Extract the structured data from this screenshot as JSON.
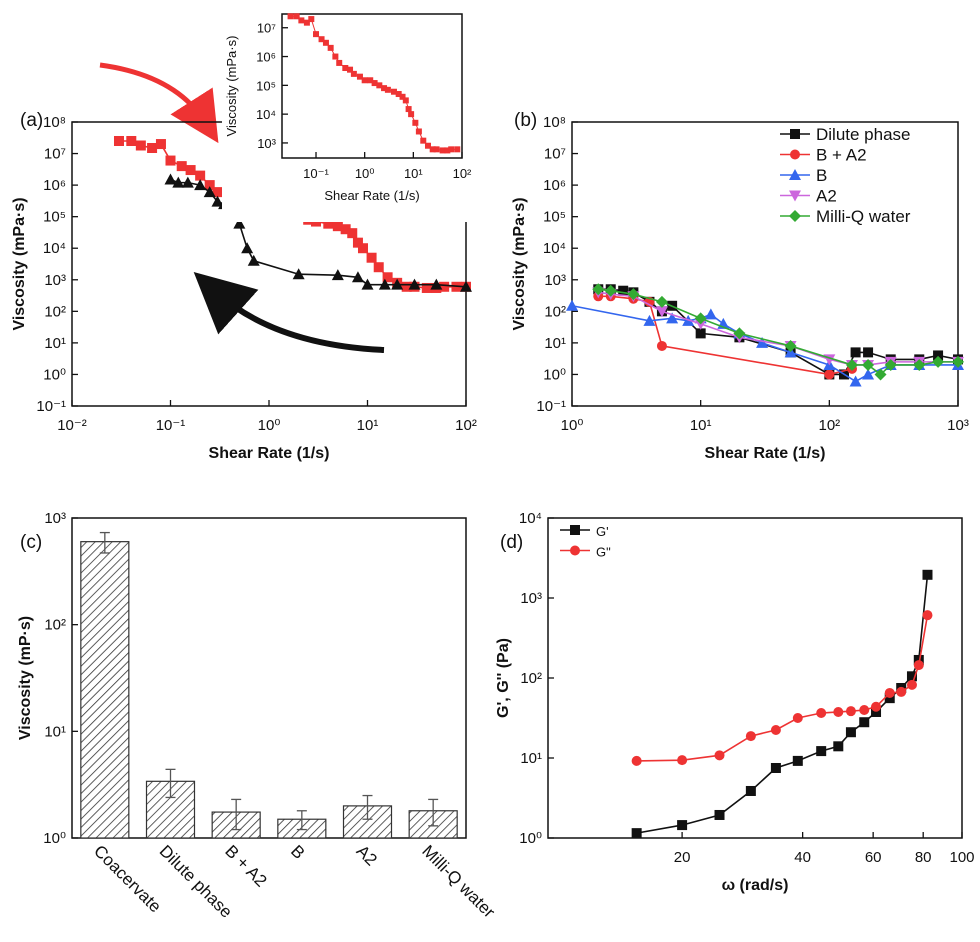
{
  "chart_data": [
    {
      "type": "line",
      "panel_label": "(a)",
      "x_label": "Shear Rate (1/s)",
      "y_label": "Viscosity (mPa·s)",
      "xscale": "log",
      "yscale": "log",
      "xlim": [
        0.01,
        100
      ],
      "ylim": [
        0.1,
        100000000
      ],
      "xticks": [
        {
          "value": 0.01,
          "label": "10⁻²"
        },
        {
          "value": 0.1,
          "label": "10⁻¹"
        },
        {
          "value": 1,
          "label": "10⁰"
        },
        {
          "value": 10,
          "label": "10¹"
        },
        {
          "value": 100,
          "label": "10²"
        }
      ],
      "yticks": [
        {
          "value": 0.1,
          "label": "10⁻¹"
        },
        {
          "value": 1,
          "label": "10⁰"
        },
        {
          "value": 10,
          "label": "10¹"
        },
        {
          "value": 100,
          "label": "10²"
        },
        {
          "value": 1000,
          "label": "10³"
        },
        {
          "value": 10000,
          "label": "10⁴"
        },
        {
          "value": 100000,
          "label": "10⁵"
        },
        {
          "value": 1000000,
          "label": "10⁶"
        },
        {
          "value": 10000000,
          "label": "10⁷"
        },
        {
          "value": 100000000,
          "label": "10⁸"
        }
      ],
      "series": [
        {
          "color": "#ee3333",
          "marker": "square",
          "x": [
            0.03,
            0.04,
            0.05,
            0.065,
            0.08,
            0.1,
            0.13,
            0.16,
            0.2,
            0.25,
            0.3,
            0.4,
            0.5,
            0.6,
            0.8,
            1,
            1.3,
            1.6,
            2,
            2.5,
            3,
            4,
            5,
            6,
            7,
            8,
            9,
            11,
            13,
            16,
            20,
            25,
            30,
            40,
            50,
            60,
            80,
            100
          ],
          "values": [
            25000000,
            25000000,
            18000000,
            15000000,
            20000000,
            6000000,
            4000000,
            3000000,
            2000000,
            1000000,
            600000,
            400000,
            350000,
            250000,
            200000,
            150000,
            150000,
            120000,
            100000,
            80000,
            70000,
            60000,
            50000,
            40000,
            30000,
            15000,
            10000,
            5000,
            2500,
            1200,
            800,
            600,
            600,
            550,
            550,
            600,
            600,
            600
          ]
        },
        {
          "color": "#111111",
          "marker": "triangle",
          "x": [
            0.1,
            0.12,
            0.15,
            0.2,
            0.25,
            0.3,
            0.35,
            0.45,
            0.5,
            0.6,
            0.7,
            2,
            5,
            8,
            10,
            15,
            20,
            30,
            50,
            100
          ],
          "values": [
            1500000,
            1200000,
            1200000,
            1000000,
            600000,
            300000,
            250000,
            200000,
            60000,
            10000,
            4000,
            1500,
            1400,
            1200,
            700,
            700,
            700,
            700,
            700,
            600
          ]
        }
      ]
    },
    {
      "type": "line",
      "x_label": "Shear Rate (1/s)",
      "y_label": "Viscosity (mPa·s)",
      "xscale": "log",
      "yscale": "log",
      "xlim": [
        0.02,
        100
      ],
      "ylim": [
        300,
        30000000
      ],
      "xticks": [
        {
          "value": 0.1,
          "label": "10⁻¹"
        },
        {
          "value": 1,
          "label": "10⁰"
        },
        {
          "value": 10,
          "label": "10¹"
        },
        {
          "value": 100,
          "label": "10²"
        }
      ],
      "yticks": [
        {
          "value": 1000,
          "label": "10³"
        },
        {
          "value": 10000,
          "label": "10⁴"
        },
        {
          "value": 100000,
          "label": "10⁵"
        },
        {
          "value": 1000000,
          "label": "10⁶"
        },
        {
          "value": 10000000,
          "label": "10⁷"
        }
      ],
      "series": [
        {
          "color": "#ee3333",
          "marker": "square-small",
          "x": [
            0.03,
            0.04,
            0.05,
            0.065,
            0.08,
            0.1,
            0.13,
            0.16,
            0.2,
            0.25,
            0.3,
            0.4,
            0.5,
            0.6,
            0.8,
            1,
            1.3,
            1.6,
            2,
            2.5,
            3,
            4,
            5,
            6,
            7,
            8,
            9,
            11,
            13,
            16,
            20,
            25,
            30,
            40,
            50,
            60,
            80
          ],
          "values": [
            25000000,
            25000000,
            18000000,
            15000000,
            20000000,
            6000000,
            4000000,
            3000000,
            2000000,
            1000000,
            600000,
            400000,
            350000,
            250000,
            200000,
            150000,
            150000,
            120000,
            100000,
            80000,
            70000,
            60000,
            50000,
            40000,
            30000,
            15000,
            10000,
            5000,
            2500,
            1200,
            800,
            600,
            600,
            550,
            550,
            600,
            600
          ]
        }
      ]
    },
    {
      "type": "line",
      "panel_label": "(b)",
      "x_label": "Shear Rate (1/s)",
      "y_label": "Viscosity (mPa·s)",
      "xscale": "log",
      "yscale": "log",
      "xlim": [
        1,
        1000
      ],
      "ylim": [
        0.1,
        100000000
      ],
      "legend": "upper right",
      "xticks": [
        {
          "value": 1,
          "label": "10⁰"
        },
        {
          "value": 10,
          "label": "10¹"
        },
        {
          "value": 100,
          "label": "10²"
        },
        {
          "value": 1000,
          "label": "10³"
        }
      ],
      "yticks": [
        {
          "value": 0.1,
          "label": "10⁻¹"
        },
        {
          "value": 1,
          "label": "10⁰"
        },
        {
          "value": 10,
          "label": "10¹"
        },
        {
          "value": 100,
          "label": "10²"
        },
        {
          "value": 1000,
          "label": "10³"
        },
        {
          "value": 10000,
          "label": "10⁴"
        },
        {
          "value": 100000,
          "label": "10⁵"
        },
        {
          "value": 1000000,
          "label": "10⁶"
        },
        {
          "value": 10000000,
          "label": "10⁷"
        },
        {
          "value": 100000000,
          "label": "10⁸"
        }
      ],
      "series": [
        {
          "name": "Dilute phase",
          "color": "#111111",
          "marker": "square",
          "x": [
            1.6,
            2,
            2.5,
            3,
            4,
            5,
            6,
            10,
            20,
            50,
            100,
            130,
            160,
            200,
            300,
            500,
            700,
            1000
          ],
          "values": [
            500,
            500,
            450,
            400,
            200,
            100,
            150,
            20,
            15,
            5,
            1,
            1,
            5,
            5,
            3,
            3,
            4,
            3
          ]
        },
        {
          "name": "B + A2",
          "color": "#ee3333",
          "marker": "circle",
          "x": [
            1.6,
            2,
            3,
            4,
            5,
            100,
            150
          ],
          "values": [
            300,
            300,
            250,
            200,
            8,
            1,
            1.5
          ]
        },
        {
          "name": "B",
          "color": "#3366ee",
          "marker": "triangle",
          "x": [
            1,
            4,
            6,
            8,
            10,
            12,
            15,
            20,
            30,
            50,
            100,
            160,
            200,
            300,
            500,
            1000
          ],
          "values": [
            150,
            50,
            60,
            50,
            60,
            80,
            40,
            20,
            10,
            5,
            2,
            0.6,
            1,
            2,
            2,
            2
          ]
        },
        {
          "name": "A2",
          "color": "#cc66dd",
          "marker": "triangle-down",
          "x": [
            1.6,
            2,
            3,
            5,
            10,
            20,
            50,
            100,
            150,
            200,
            300,
            500,
            1000
          ],
          "values": [
            400,
            350,
            300,
            100,
            40,
            15,
            8,
            3,
            2,
            2,
            2.5,
            2.5,
            2.5
          ]
        },
        {
          "name": "Milli-Q water",
          "color": "#33aa33",
          "marker": "diamond",
          "x": [
            1.6,
            2,
            3,
            5,
            10,
            20,
            50,
            150,
            200,
            250,
            300,
            500,
            700,
            1000
          ],
          "values": [
            500,
            450,
            350,
            200,
            60,
            20,
            8,
            2,
            2,
            1,
            2,
            2,
            2.5,
            2.5
          ]
        }
      ]
    },
    {
      "type": "bar",
      "panel_label": "(c)",
      "y_label": "Viscosity (mP·s)",
      "yscale": "log",
      "ylim": [
        1,
        1000
      ],
      "yticks": [
        {
          "value": 1,
          "label": "10⁰"
        },
        {
          "value": 10,
          "label": "10¹"
        },
        {
          "value": 100,
          "label": "10²"
        },
        {
          "value": 1000,
          "label": "10³"
        }
      ],
      "categories": [
        "Coacervate",
        "Dilute phase",
        "B + A2",
        "B",
        "A2",
        "Milli-Q water"
      ],
      "values": [
        600,
        3.4,
        1.75,
        1.5,
        2.0,
        1.8
      ],
      "errors": [
        130,
        1.0,
        0.55,
        0.3,
        0.5,
        0.5
      ],
      "color": "#555555"
    },
    {
      "type": "line",
      "panel_label": "(d)",
      "x_label": "ω (rad/s)",
      "y_label": "G', G'' (Pa)",
      "xscale": "log",
      "yscale": "log",
      "xlim": [
        9.25,
        100
      ],
      "ylim": [
        1,
        10000
      ],
      "legend": "upper left",
      "xticks": [
        20,
        40,
        60,
        80,
        100
      ],
      "yticks": [
        {
          "value": 1,
          "label": "10⁰"
        },
        {
          "value": 10,
          "label": "10¹"
        },
        {
          "value": 100,
          "label": "10²"
        },
        {
          "value": 1000,
          "label": "10³"
        },
        {
          "value": 10000,
          "label": "10⁴"
        }
      ],
      "series": [
        {
          "name": "G'",
          "color": "#111111",
          "marker": "square",
          "x": [
            15.4,
            20,
            24.8,
            29.7,
            34.3,
            38.9,
            44.5,
            49.1,
            52.8,
            57,
            61,
            66,
            70.5,
            75,
            78,
            82
          ],
          "values": [
            1.15,
            1.45,
            1.94,
            3.87,
            7.5,
            9.2,
            12.2,
            14,
            21,
            28,
            37.6,
            56,
            75,
            105,
            168,
            1950
          ]
        },
        {
          "name": "G\"",
          "color": "#ee3333",
          "marker": "circle",
          "x": [
            15.4,
            20,
            24.8,
            29.7,
            34.3,
            38.9,
            44.5,
            49.1,
            52.8,
            57,
            61,
            66,
            70.5,
            75,
            78,
            82
          ],
          "values": [
            9.2,
            9.4,
            10.8,
            18.8,
            22.4,
            31.6,
            36.5,
            37.6,
            38.5,
            39.8,
            43.7,
            65,
            67,
            82,
            145,
            610
          ]
        }
      ]
    }
  ]
}
